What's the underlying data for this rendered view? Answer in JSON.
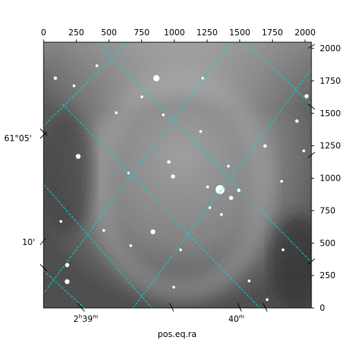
{
  "chart_data": {
    "type": "image",
    "xlabel": "pos.eq.ra",
    "pixel_axes": {
      "x": {
        "range": [
          0,
          2048
        ],
        "ticks": [
          0,
          250,
          500,
          750,
          1000,
          1250,
          1500,
          1750,
          2000
        ]
      },
      "y": {
        "range": [
          0,
          2048
        ],
        "ticks": [
          0,
          250,
          500,
          750,
          1000,
          1250,
          1500,
          1750,
          2000
        ]
      }
    },
    "world_ticks": {
      "ra_bottom": [
        {
          "hours": "2",
          "minutes": "39",
          "label": "2h39m"
        },
        {
          "hours": "",
          "minutes": "40",
          "label": "40m"
        }
      ],
      "dec_left": [
        {
          "label": "61°05'"
        },
        {
          "label": "10'"
        }
      ]
    },
    "grid": true,
    "grid_color": "#00d8d8",
    "colormap": "gray",
    "image_description": "grayscale astronomical field with nebulosity and stars"
  }
}
